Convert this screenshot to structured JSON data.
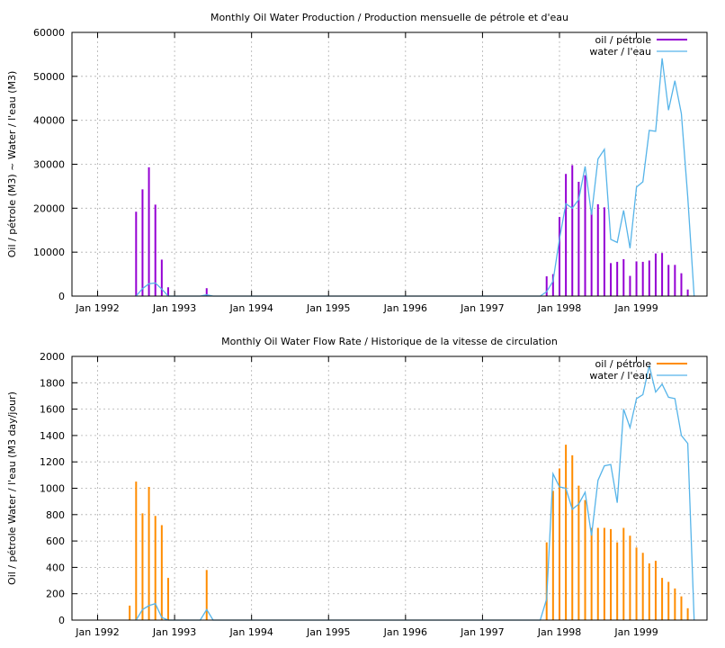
{
  "chart_data": [
    {
      "type": "bar",
      "title": "Monthly Oil  Water Production / Production mensuelle de pétrole et d'eau",
      "ylabel": "Oil / pétrole (M3) ~  Water / l'eau (M3)",
      "xlabel": "",
      "x_ticks": [
        "Jan 1992",
        "Jan 1993",
        "Jan 1994",
        "Jan 1995",
        "Jan 1996",
        "Jan 1997",
        "Jan 1998",
        "Jan 1999"
      ],
      "y_ticks": [
        "0",
        "10000",
        "20000",
        "30000",
        "40000",
        "50000",
        "60000"
      ],
      "ylim": [
        0,
        60000
      ],
      "xlim": [
        "1991-09",
        "1999-12"
      ],
      "grid": true,
      "legend_position": "top-right",
      "colors": {
        "oil": "#9400d3",
        "water": "#56b4e9"
      },
      "series": [
        {
          "name": "oil / pétrole",
          "style": "impulses",
          "points": [
            [
              "1992-07",
              19200
            ],
            [
              "1992-08",
              24300
            ],
            [
              "1992-09",
              29300
            ],
            [
              "1992-10",
              20800
            ],
            [
              "1992-11",
              8300
            ],
            [
              "1992-12",
              2000
            ],
            [
              "1993-06",
              1800
            ],
            [
              "1997-11",
              4500
            ],
            [
              "1997-12",
              5000
            ],
            [
              "1998-01",
              18000
            ],
            [
              "1998-02",
              27800
            ],
            [
              "1998-03",
              29800
            ],
            [
              "1998-04",
              26000
            ],
            [
              "1998-05",
              27500
            ],
            [
              "1998-06",
              19300
            ],
            [
              "1998-07",
              20900
            ],
            [
              "1998-08",
              20200
            ],
            [
              "1998-09",
              7500
            ],
            [
              "1998-10",
              7800
            ],
            [
              "1998-11",
              8400
            ],
            [
              "1998-12",
              4600
            ],
            [
              "1999-01",
              7900
            ],
            [
              "1999-02",
              7800
            ],
            [
              "1999-03",
              8100
            ],
            [
              "1999-04",
              9700
            ],
            [
              "1999-05",
              9800
            ],
            [
              "1999-06",
              7100
            ],
            [
              "1999-07",
              7100
            ],
            [
              "1999-08",
              5200
            ],
            [
              "1999-09",
              1500
            ]
          ]
        },
        {
          "name": "water / l'eau",
          "style": "line",
          "points": [
            [
              "1992-07",
              0
            ],
            [
              "1992-08",
              1700
            ],
            [
              "1992-09",
              2800
            ],
            [
              "1992-10",
              3000
            ],
            [
              "1992-11",
              1600
            ],
            [
              "1992-12",
              0
            ],
            [
              "1993-05",
              0
            ],
            [
              "1993-06",
              300
            ],
            [
              "1993-07",
              0
            ],
            [
              "1997-10",
              0
            ],
            [
              "1997-11",
              1000
            ],
            [
              "1997-12",
              3400
            ],
            [
              "1998-01",
              13000
            ],
            [
              "1998-02",
              21000
            ],
            [
              "1998-03",
              20000
            ],
            [
              "1998-04",
              22000
            ],
            [
              "1998-05",
              29500
            ],
            [
              "1998-06",
              18500
            ],
            [
              "1998-07",
              31200
            ],
            [
              "1998-08",
              33400
            ],
            [
              "1998-09",
              12900
            ],
            [
              "1998-10",
              12200
            ],
            [
              "1998-11",
              19500
            ],
            [
              "1998-12",
              10900
            ],
            [
              "1999-01",
              24800
            ],
            [
              "1999-02",
              26000
            ],
            [
              "1999-03",
              37700
            ],
            [
              "1999-04",
              37500
            ],
            [
              "1999-05",
              54100
            ],
            [
              "1999-06",
              42300
            ],
            [
              "1999-07",
              49000
            ],
            [
              "1999-08",
              41500
            ],
            [
              "1999-09",
              22500
            ],
            [
              "1999-10",
              0
            ]
          ]
        }
      ]
    },
    {
      "type": "bar",
      "title": "Monthly Oil  Water Flow Rate / Historique de la vitesse de circulation",
      "ylabel": "Oil / pétrole  Water / l'eau (M3 day/jour)",
      "xlabel": "",
      "x_ticks": [
        "Jan 1992",
        "Jan 1993",
        "Jan 1994",
        "Jan 1995",
        "Jan 1996",
        "Jan 1997",
        "Jan 1998",
        "Jan 1999"
      ],
      "y_ticks": [
        "0",
        "200",
        "400",
        "600",
        "800",
        "1000",
        "1200",
        "1400",
        "1600",
        "1800",
        "2000"
      ],
      "ylim": [
        0,
        2000
      ],
      "xlim": [
        "1991-09",
        "1999-12"
      ],
      "grid": true,
      "legend_position": "top-right",
      "colors": {
        "oil": "#ff8c00",
        "water": "#56b4e9"
      },
      "series": [
        {
          "name": "oil / pétrole",
          "style": "impulses",
          "points": [
            [
              "1992-06",
              110
            ],
            [
              "1992-07",
              1050
            ],
            [
              "1992-08",
              810
            ],
            [
              "1992-09",
              1010
            ],
            [
              "1992-10",
              790
            ],
            [
              "1992-11",
              720
            ],
            [
              "1992-12",
              320
            ],
            [
              "1993-06",
              380
            ],
            [
              "1997-11",
              590
            ],
            [
              "1997-12",
              980
            ],
            [
              "1998-01",
              1150
            ],
            [
              "1998-02",
              1330
            ],
            [
              "1998-03",
              1250
            ],
            [
              "1998-04",
              1020
            ],
            [
              "1998-05",
              910
            ],
            [
              "1998-06",
              700
            ],
            [
              "1998-07",
              700
            ],
            [
              "1998-08",
              700
            ],
            [
              "1998-09",
              690
            ],
            [
              "1998-10",
              590
            ],
            [
              "1998-11",
              700
            ],
            [
              "1998-12",
              640
            ],
            [
              "1999-01",
              550
            ],
            [
              "1999-02",
              510
            ],
            [
              "1999-03",
              430
            ],
            [
              "1999-04",
              450
            ],
            [
              "1999-05",
              320
            ],
            [
              "1999-06",
              290
            ],
            [
              "1999-07",
              240
            ],
            [
              "1999-08",
              180
            ],
            [
              "1999-09",
              90
            ]
          ]
        },
        {
          "name": "water / l'eau",
          "style": "line",
          "points": [
            [
              "1992-07",
              0
            ],
            [
              "1992-08",
              80
            ],
            [
              "1992-09",
              110
            ],
            [
              "1992-10",
              125
            ],
            [
              "1992-11",
              20
            ],
            [
              "1992-12",
              0
            ],
            [
              "1993-05",
              0
            ],
            [
              "1993-06",
              80
            ],
            [
              "1993-07",
              0
            ],
            [
              "1997-10",
              0
            ],
            [
              "1997-11",
              160
            ],
            [
              "1997-12",
              1110
            ],
            [
              "1998-01",
              1010
            ],
            [
              "1998-02",
              1000
            ],
            [
              "1998-03",
              840
            ],
            [
              "1998-04",
              880
            ],
            [
              "1998-05",
              970
            ],
            [
              "1998-06",
              640
            ],
            [
              "1998-07",
              1060
            ],
            [
              "1998-08",
              1170
            ],
            [
              "1998-09",
              1180
            ],
            [
              "1998-10",
              890
            ],
            [
              "1998-11",
              1600
            ],
            [
              "1998-12",
              1460
            ],
            [
              "1999-01",
              1680
            ],
            [
              "1999-02",
              1710
            ],
            [
              "1999-03",
              1930
            ],
            [
              "1999-04",
              1730
            ],
            [
              "1999-05",
              1790
            ],
            [
              "1999-06",
              1690
            ],
            [
              "1999-07",
              1680
            ],
            [
              "1999-08",
              1400
            ],
            [
              "1999-09",
              1340
            ],
            [
              "1999-10",
              0
            ]
          ]
        }
      ]
    }
  ]
}
